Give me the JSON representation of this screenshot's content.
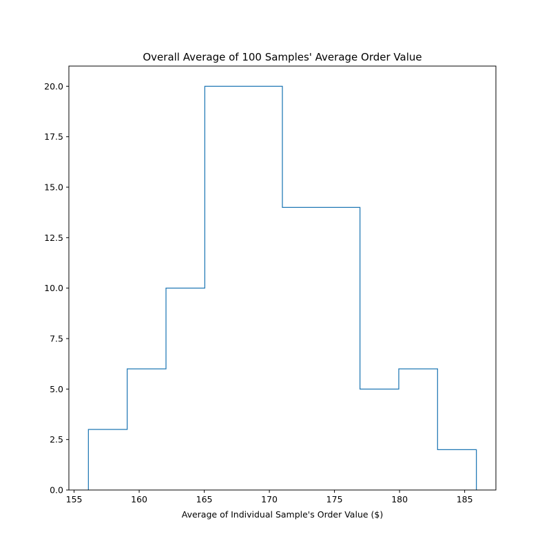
{
  "chart_data": {
    "type": "bar",
    "histtype": "step",
    "title": "Overall Average of 100 Samples' Average Order Value",
    "xlabel": "Average of Individual Sample's Order Value ($)",
    "ylabel": "",
    "bin_edges": [
      156.1,
      159.08,
      162.06,
      165.04,
      168.02,
      171.0,
      173.98,
      176.96,
      179.94,
      182.92,
      185.9
    ],
    "values": [
      3,
      6,
      10,
      20,
      20,
      14,
      14,
      5,
      6,
      2
    ],
    "xlim": [
      154.6,
      187.4
    ],
    "ylim": [
      0,
      21
    ],
    "xticks": [
      155,
      160,
      165,
      170,
      175,
      180,
      185
    ],
    "xtick_labels": [
      "155",
      "160",
      "165",
      "170",
      "175",
      "180",
      "185"
    ],
    "yticks": [
      0,
      2.5,
      5,
      7.5,
      10,
      12.5,
      15,
      17.5,
      20
    ],
    "ytick_labels": [
      "0.0",
      "2.5",
      "5.0",
      "7.5",
      "10.0",
      "12.5",
      "15.0",
      "17.5",
      "20.0"
    ],
    "color": "#1f77b4",
    "grid": false,
    "legend": false
  }
}
